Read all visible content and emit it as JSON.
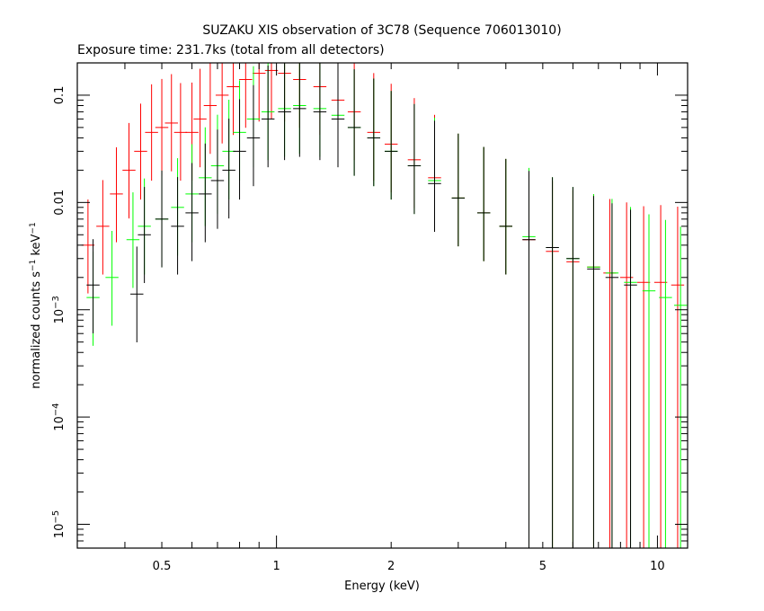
{
  "chart_data": {
    "type": "scatter",
    "title": "SUZAKU XIS observation of 3C78 (Sequence 706013010)",
    "subtitle": "Exposure time: 231.7ks (total from all detectors)",
    "xlabel": "Energy (keV)",
    "ylabel": "normalized counts s^-1 keV^-1",
    "xscale": "log",
    "yscale": "log",
    "xlim": [
      0.3,
      12
    ],
    "ylim": [
      6e-06,
      0.2
    ],
    "grid": false,
    "x_ticks": [
      {
        "value": 0.5,
        "label": "0.5"
      },
      {
        "value": 1,
        "label": "1"
      },
      {
        "value": 2,
        "label": "2"
      },
      {
        "value": 5,
        "label": "5"
      },
      {
        "value": 10,
        "label": "10"
      }
    ],
    "y_ticks": [
      {
        "value": 0.1,
        "base": "0.1",
        "exp": ""
      },
      {
        "value": 0.01,
        "base": "0.01",
        "exp": ""
      },
      {
        "value": 0.001,
        "base": "10",
        "exp": "−3"
      },
      {
        "value": 0.0001,
        "base": "10",
        "exp": "−4"
      },
      {
        "value": 1e-05,
        "base": "10",
        "exp": "−5"
      }
    ],
    "series": [
      {
        "color": "#ff0000",
        "points": [
          [
            0.32,
            0.004
          ],
          [
            0.35,
            0.006
          ],
          [
            0.38,
            0.012
          ],
          [
            0.41,
            0.02
          ],
          [
            0.44,
            0.03
          ],
          [
            0.47,
            0.045
          ],
          [
            0.5,
            0.05
          ],
          [
            0.53,
            0.055
          ],
          [
            0.56,
            0.045
          ],
          [
            0.6,
            0.045
          ],
          [
            0.63,
            0.06
          ],
          [
            0.67,
            0.08
          ],
          [
            0.72,
            0.1
          ],
          [
            0.77,
            0.12
          ],
          [
            0.83,
            0.14
          ],
          [
            0.9,
            0.16
          ],
          [
            0.97,
            0.17
          ],
          [
            1.05,
            0.16
          ],
          [
            1.15,
            0.14
          ],
          [
            1.3,
            0.12
          ],
          [
            1.45,
            0.09
          ],
          [
            1.6,
            0.07
          ],
          [
            1.8,
            0.045
          ],
          [
            2.0,
            0.035
          ],
          [
            2.3,
            0.025
          ],
          [
            2.6,
            0.017
          ],
          [
            3.0,
            0.011
          ],
          [
            3.5,
            0.008
          ],
          [
            4.0,
            0.006
          ],
          [
            4.6,
            0.0045
          ],
          [
            5.3,
            0.0035
          ],
          [
            6.0,
            0.0028
          ],
          [
            6.8,
            0.0025
          ],
          [
            7.5,
            0.0022
          ],
          [
            8.3,
            0.002
          ],
          [
            9.2,
            0.0018
          ],
          [
            10.2,
            0.0018
          ],
          [
            11.3,
            0.0017
          ]
        ]
      },
      {
        "color": "#00ff00",
        "points": [
          [
            0.33,
            0.0013
          ],
          [
            0.37,
            0.002
          ],
          [
            0.42,
            0.0045
          ],
          [
            0.45,
            0.006
          ],
          [
            0.5,
            0.007
          ],
          [
            0.55,
            0.009
          ],
          [
            0.6,
            0.012
          ],
          [
            0.65,
            0.017
          ],
          [
            0.7,
            0.022
          ],
          [
            0.75,
            0.03
          ],
          [
            0.8,
            0.045
          ],
          [
            0.87,
            0.06
          ],
          [
            0.95,
            0.07
          ],
          [
            1.05,
            0.075
          ],
          [
            1.15,
            0.08
          ],
          [
            1.3,
            0.075
          ],
          [
            1.45,
            0.065
          ],
          [
            1.6,
            0.05
          ],
          [
            1.8,
            0.04
          ],
          [
            2.0,
            0.03
          ],
          [
            2.3,
            0.022
          ],
          [
            2.6,
            0.016
          ],
          [
            3.0,
            0.011
          ],
          [
            3.5,
            0.008
          ],
          [
            4.0,
            0.006
          ],
          [
            4.6,
            0.0048
          ],
          [
            5.3,
            0.0038
          ],
          [
            6.0,
            0.003
          ],
          [
            6.8,
            0.0025
          ],
          [
            7.6,
            0.0022
          ],
          [
            8.5,
            0.0018
          ],
          [
            9.5,
            0.0015
          ],
          [
            10.5,
            0.0013
          ],
          [
            11.5,
            0.0011
          ]
        ]
      },
      {
        "color": "#000000",
        "points": [
          [
            0.33,
            0.0017
          ],
          [
            0.43,
            0.0014
          ],
          [
            0.45,
            0.005
          ],
          [
            0.5,
            0.007
          ],
          [
            0.55,
            0.006
          ],
          [
            0.6,
            0.008
          ],
          [
            0.65,
            0.012
          ],
          [
            0.7,
            0.016
          ],
          [
            0.75,
            0.02
          ],
          [
            0.8,
            0.03
          ],
          [
            0.87,
            0.04
          ],
          [
            0.95,
            0.06
          ],
          [
            1.05,
            0.07
          ],
          [
            1.15,
            0.075
          ],
          [
            1.3,
            0.07
          ],
          [
            1.45,
            0.06
          ],
          [
            1.6,
            0.05
          ],
          [
            1.8,
            0.04
          ],
          [
            2.0,
            0.03
          ],
          [
            2.3,
            0.022
          ],
          [
            2.6,
            0.015
          ],
          [
            3.0,
            0.011
          ],
          [
            3.5,
            0.008
          ],
          [
            4.0,
            0.006
          ],
          [
            4.6,
            0.0045
          ],
          [
            5.3,
            0.0038
          ],
          [
            6.0,
            0.003
          ],
          [
            6.8,
            0.0024
          ],
          [
            7.6,
            0.002
          ],
          [
            8.5,
            0.0017
          ]
        ]
      }
    ]
  }
}
